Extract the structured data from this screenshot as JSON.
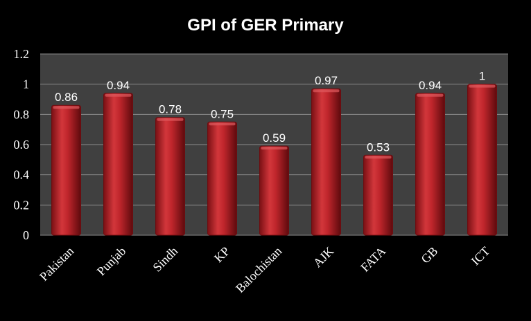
{
  "chart_data": {
    "type": "bar",
    "title": "GPI of GER Primary",
    "xlabel": "",
    "ylabel": "",
    "categories": [
      "Pakistan",
      "Punjab",
      "Sindh",
      "KP",
      "Balochistan",
      "AJK",
      "FATA",
      "GB",
      "ICT"
    ],
    "values": [
      0.86,
      0.94,
      0.78,
      0.75,
      0.59,
      0.97,
      0.53,
      0.94,
      1
    ],
    "data_labels": [
      "0.86",
      "0.94",
      "0.78",
      "0.75",
      "0.59",
      "0.97",
      "0.53",
      "0.94",
      "1"
    ],
    "ylim": [
      0,
      1.2
    ],
    "yticks": [
      "0",
      "0.2",
      "0.4",
      "0.6",
      "0.8",
      "1",
      "1.2"
    ],
    "grid": true,
    "legend": "none",
    "colors": {
      "bar": "#c0262c",
      "bar_dark": "#6e0d10",
      "bar_light": "#e05a5e",
      "plot_bg": "#404040",
      "gridline": "#8c8c8c",
      "page_bg": "#000000",
      "text": "#ffffff"
    }
  }
}
